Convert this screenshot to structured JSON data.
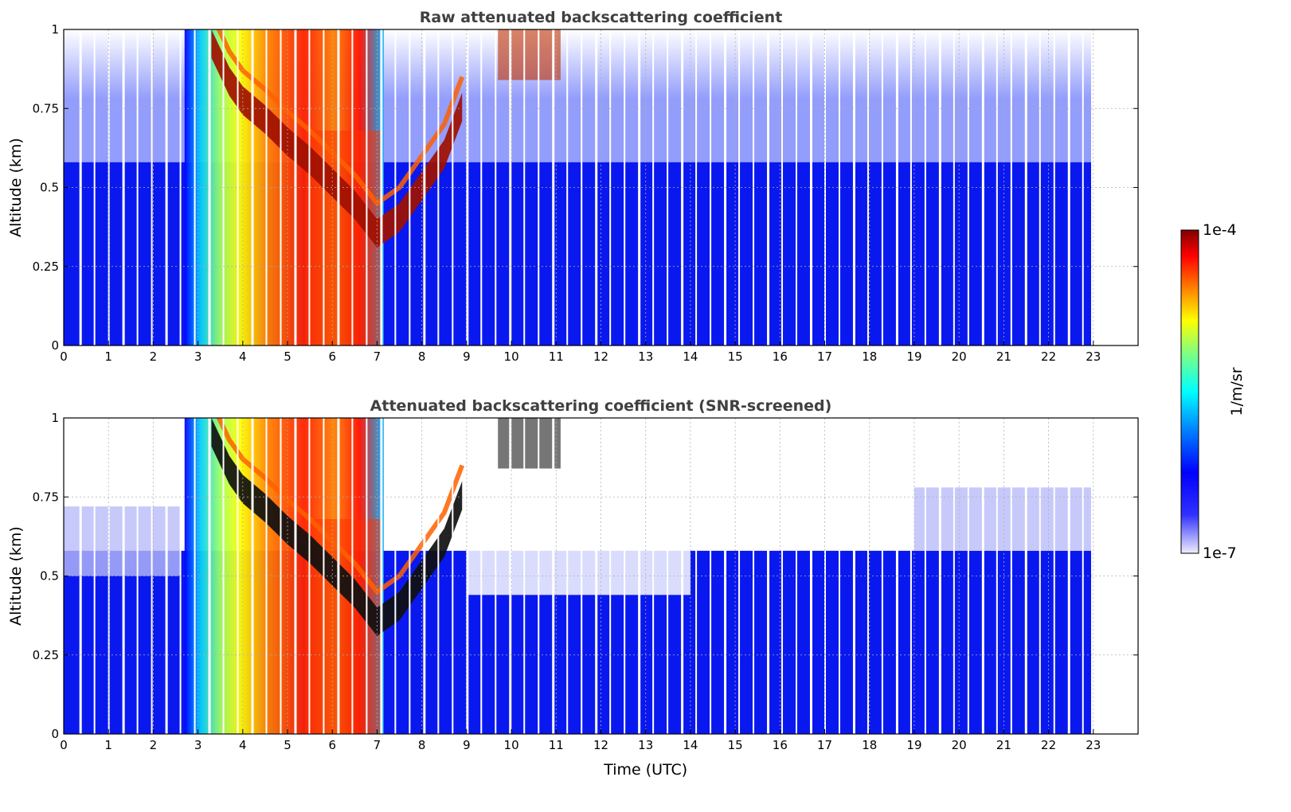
{
  "chart_data": [
    {
      "type": "heatmap",
      "title": "Raw attenuated backscattering coefficient",
      "xlabel": "",
      "ylabel": "Altitude (km)",
      "xlim": [
        0,
        24
      ],
      "ylim": [
        0,
        1
      ],
      "x_ticks": [
        "0",
        "1",
        "2",
        "3",
        "4",
        "5",
        "6",
        "7",
        "8",
        "9",
        "10",
        "11",
        "12",
        "13",
        "14",
        "15",
        "16",
        "17",
        "18",
        "19",
        "20",
        "21",
        "22",
        "23"
      ],
      "y_ticks": [
        "0",
        "0.25",
        "0.5",
        "0.75",
        "1"
      ],
      "grid": true,
      "data_end_time": 22.95,
      "cloud_layer": [
        {
          "x": 3.3,
          "y": 1.0
        },
        {
          "x": 3.7,
          "y": 0.88
        },
        {
          "x": 4.0,
          "y": 0.82
        },
        {
          "x": 4.5,
          "y": 0.76
        },
        {
          "x": 5.0,
          "y": 0.69
        },
        {
          "x": 5.5,
          "y": 0.63
        },
        {
          "x": 6.0,
          "y": 0.56
        },
        {
          "x": 6.5,
          "y": 0.49
        },
        {
          "x": 7.0,
          "y": 0.4
        },
        {
          "x": 7.5,
          "y": 0.45
        },
        {
          "x": 8.0,
          "y": 0.55
        },
        {
          "x": 8.5,
          "y": 0.65
        },
        {
          "x": 8.9,
          "y": 0.8
        }
      ]
    },
    {
      "type": "heatmap",
      "title": "Attenuated backscattering coefficient (SNR-screened)",
      "xlabel": "Time (UTC)",
      "ylabel": "Altitude (km)",
      "xlim": [
        0,
        24
      ],
      "ylim": [
        0,
        1
      ],
      "x_ticks": [
        "0",
        "1",
        "2",
        "3",
        "4",
        "5",
        "6",
        "7",
        "8",
        "9",
        "10",
        "11",
        "12",
        "13",
        "14",
        "15",
        "16",
        "17",
        "18",
        "19",
        "20",
        "21",
        "22",
        "23"
      ],
      "y_ticks": [
        "0",
        "0.25",
        "0.5",
        "0.75",
        "1"
      ],
      "grid": true,
      "data_end_time": 22.95
    }
  ],
  "colorbar": {
    "label": "1/m/sr",
    "max_label": "1e-4",
    "min_label": "1e-7",
    "colormap": "jet",
    "scale": "log",
    "colors": [
      "#eeeefc",
      "#0000ff",
      "#0080ff",
      "#00ffff",
      "#80ff80",
      "#ffff00",
      "#ff8000",
      "#ff0000",
      "#800000"
    ]
  }
}
